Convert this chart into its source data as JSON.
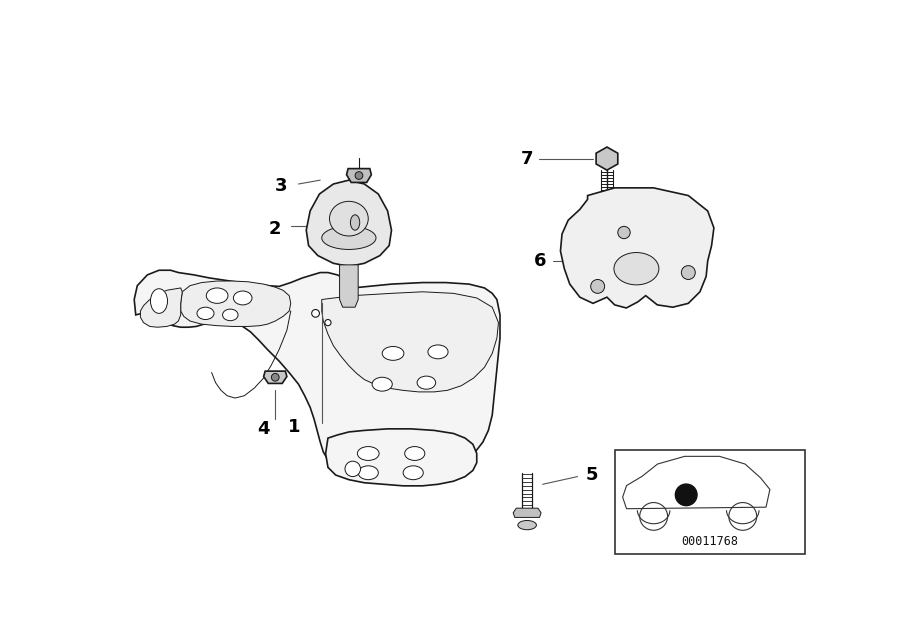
{
  "bg_color": "#ffffff",
  "line_color": "#1a1a1a",
  "lw_main": 1.2,
  "lw_thin": 0.7,
  "diagram_id": "00011768",
  "label_fontsize": 13,
  "parts_label": [
    "1",
    "2",
    "3",
    "4",
    "5",
    "6",
    "7"
  ]
}
